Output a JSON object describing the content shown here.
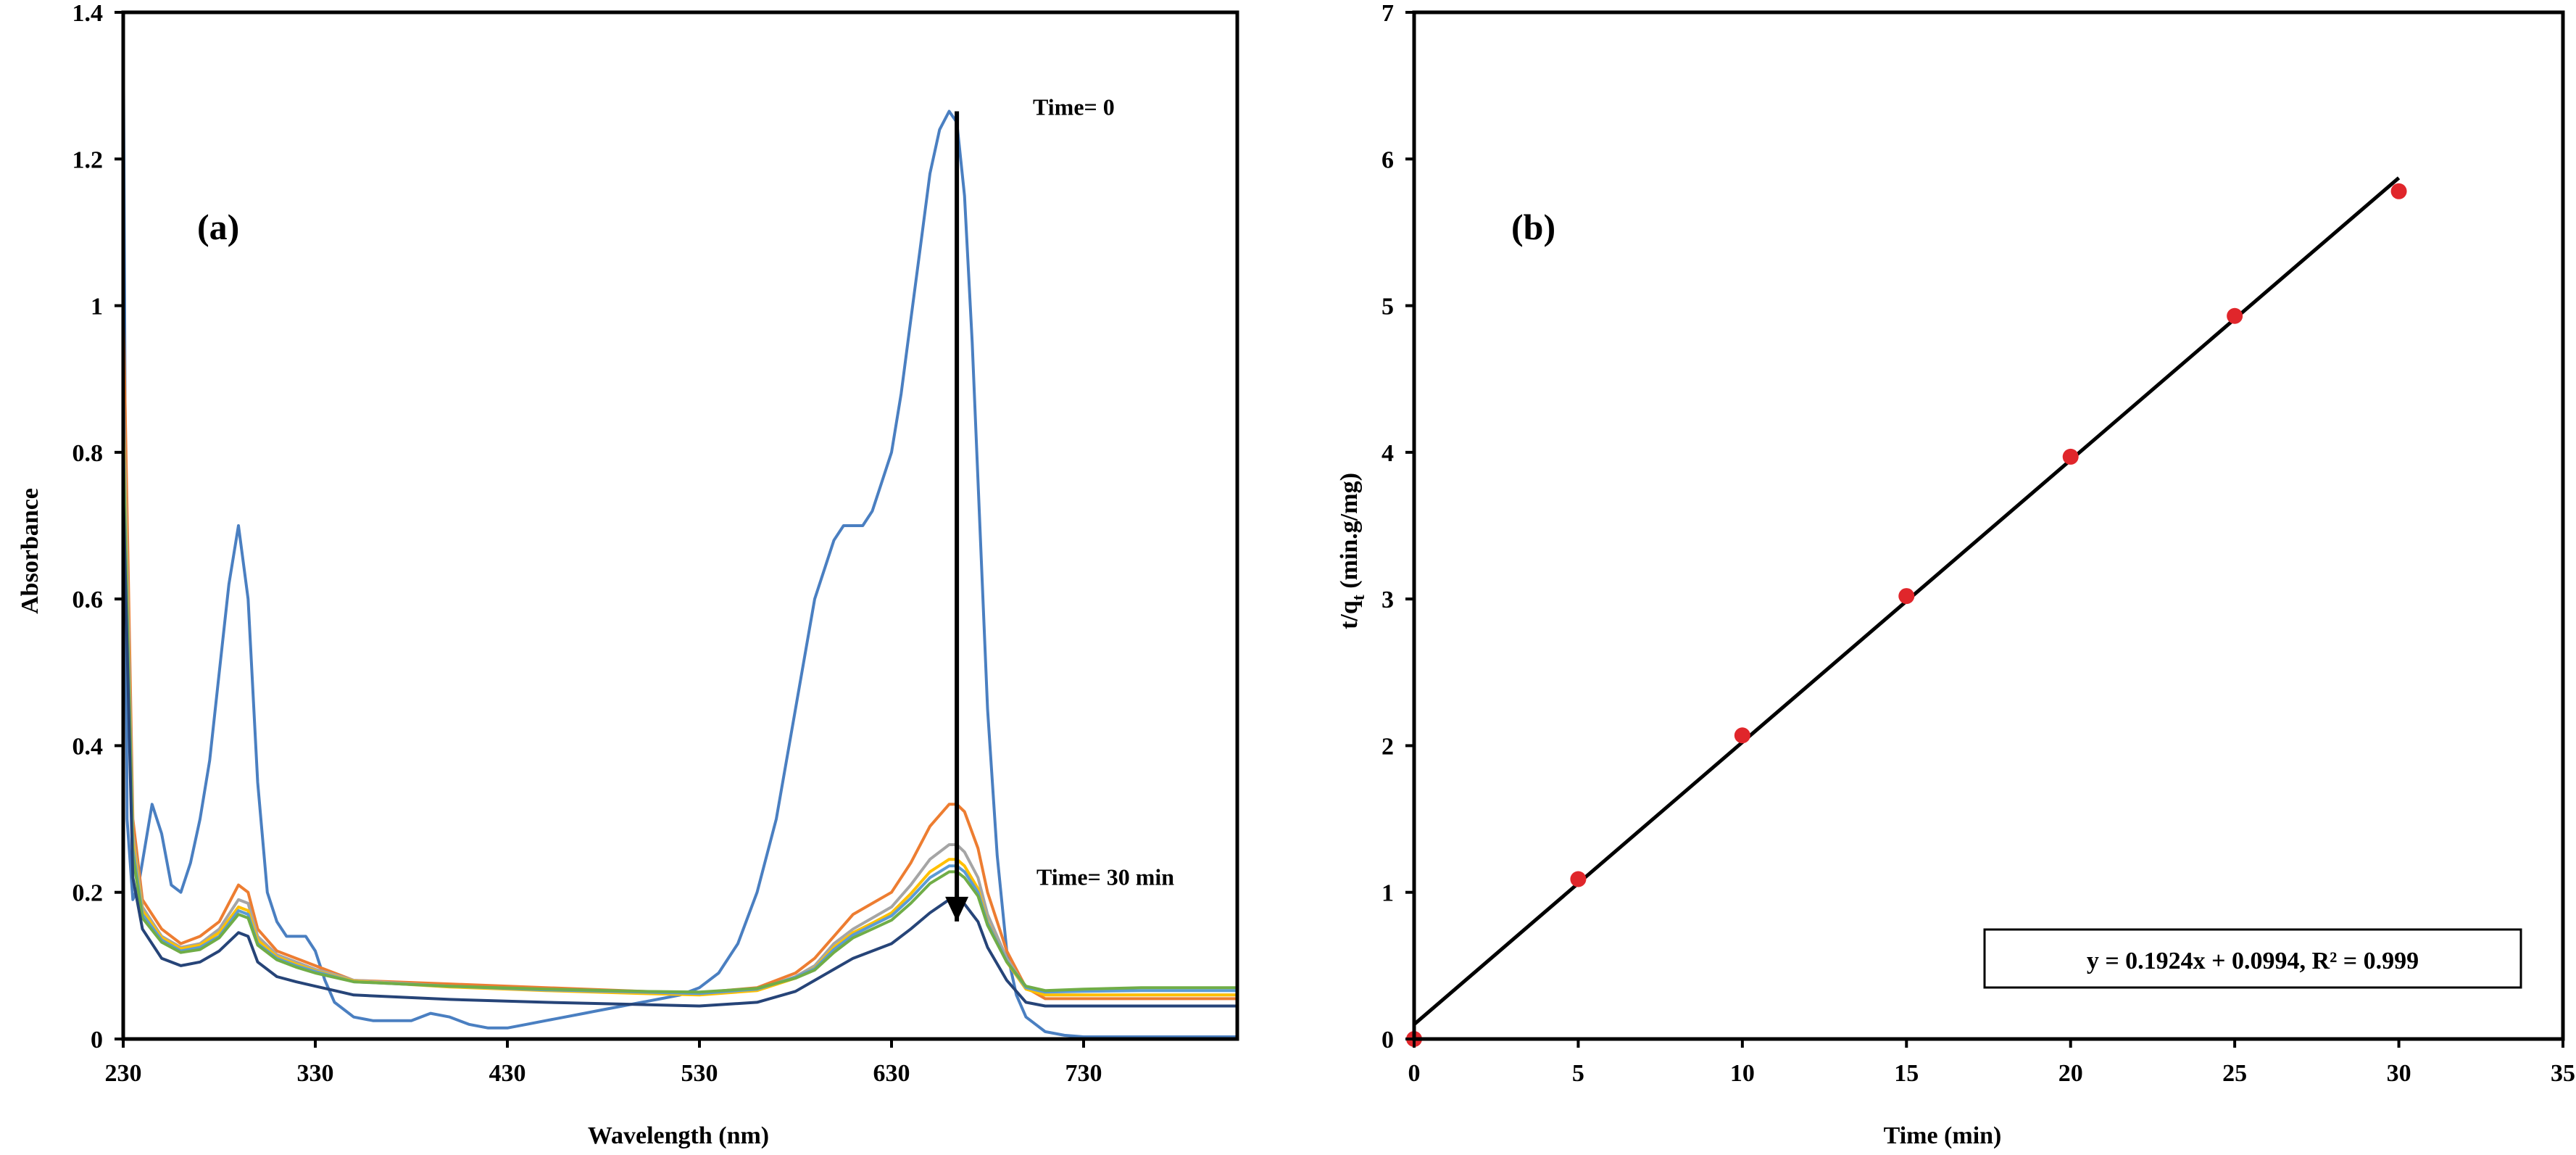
{
  "chart_data": [
    {
      "type": "line",
      "panel_label": "(a)",
      "xlabel": "Wavelength (nm)",
      "ylabel": "Absorbance",
      "xlim": [
        230,
        810
      ],
      "ylim": [
        0,
        1.4
      ],
      "xticks": [
        230,
        330,
        430,
        530,
        630,
        730
      ],
      "yticks": [
        0,
        0.2,
        0.4,
        0.6,
        0.8,
        1,
        1.2,
        1.4
      ],
      "xtick_labels": [
        "230",
        "330",
        "430",
        "530",
        "630",
        "730"
      ],
      "ytick_labels": [
        "0",
        "0.2",
        "0.4",
        "0.6",
        "0.8",
        "1",
        "1.2",
        "1.4"
      ],
      "grid": false,
      "annotations": [
        {
          "text": "Time= 0",
          "x": 667,
          "y": 1.27
        },
        {
          "text": "Time= 30 min",
          "x": 670,
          "y": 0.22
        }
      ],
      "arrow": {
        "x": 664,
        "y_from": 1.265,
        "y_to": 0.19
      },
      "series": [
        {
          "color": "#4a7fc1",
          "x": [
            230,
            232,
            235,
            238,
            245,
            250,
            255,
            260,
            265,
            270,
            275,
            280,
            285,
            290,
            295,
            300,
            305,
            310,
            315,
            320,
            325,
            330,
            335,
            340,
            350,
            360,
            370,
            380,
            390,
            400,
            410,
            420,
            430,
            440,
            450,
            460,
            470,
            480,
            490,
            500,
            510,
            520,
            530,
            540,
            550,
            560,
            570,
            580,
            590,
            600,
            605,
            610,
            615,
            620,
            625,
            630,
            635,
            640,
            645,
            650,
            655,
            660,
            664,
            668,
            672,
            676,
            680,
            685,
            690,
            695,
            700,
            705,
            710,
            720,
            730,
            740,
            750,
            760,
            780,
            800,
            810
          ],
          "y": [
            1.4,
            0.3,
            0.19,
            0.21,
            0.32,
            0.28,
            0.21,
            0.2,
            0.24,
            0.3,
            0.38,
            0.5,
            0.62,
            0.7,
            0.6,
            0.35,
            0.2,
            0.16,
            0.14,
            0.14,
            0.14,
            0.12,
            0.08,
            0.05,
            0.03,
            0.025,
            0.025,
            0.025,
            0.035,
            0.03,
            0.02,
            0.015,
            0.015,
            0.02,
            0.025,
            0.03,
            0.035,
            0.04,
            0.045,
            0.05,
            0.055,
            0.06,
            0.07,
            0.09,
            0.13,
            0.2,
            0.3,
            0.45,
            0.6,
            0.68,
            0.7,
            0.7,
            0.7,
            0.72,
            0.76,
            0.8,
            0.88,
            0.98,
            1.08,
            1.18,
            1.24,
            1.265,
            1.25,
            1.15,
            0.95,
            0.7,
            0.45,
            0.25,
            0.12,
            0.06,
            0.03,
            0.02,
            0.01,
            0.005,
            0.003,
            0.003,
            0.003,
            0.003,
            0.003,
            0.003,
            0.003
          ]
        },
        {
          "color": "#ed7d31",
          "x": [
            230,
            235,
            240,
            250,
            260,
            270,
            280,
            290,
            295,
            300,
            310,
            320,
            330,
            340,
            350,
            400,
            450,
            500,
            530,
            560,
            580,
            590,
            600,
            610,
            620,
            630,
            640,
            650,
            660,
            664,
            668,
            675,
            680,
            690,
            700,
            710,
            730,
            760,
            810
          ],
          "y": [
            1.0,
            0.3,
            0.19,
            0.15,
            0.13,
            0.14,
            0.16,
            0.21,
            0.2,
            0.15,
            0.12,
            0.11,
            0.1,
            0.09,
            0.08,
            0.075,
            0.07,
            0.065,
            0.063,
            0.07,
            0.09,
            0.11,
            0.14,
            0.17,
            0.185,
            0.2,
            0.24,
            0.29,
            0.32,
            0.32,
            0.31,
            0.26,
            0.2,
            0.12,
            0.07,
            0.055,
            0.055,
            0.055,
            0.055
          ]
        },
        {
          "color": "#a5a5a5",
          "x": [
            230,
            235,
            240,
            250,
            260,
            270,
            280,
            290,
            295,
            300,
            310,
            320,
            330,
            340,
            350,
            400,
            450,
            500,
            530,
            560,
            580,
            590,
            600,
            610,
            620,
            630,
            640,
            650,
            660,
            664,
            668,
            675,
            680,
            690,
            700,
            710,
            730,
            760,
            810
          ],
          "y": [
            0.9,
            0.28,
            0.18,
            0.14,
            0.125,
            0.13,
            0.15,
            0.19,
            0.185,
            0.14,
            0.115,
            0.105,
            0.095,
            0.088,
            0.08,
            0.072,
            0.067,
            0.063,
            0.061,
            0.067,
            0.085,
            0.1,
            0.13,
            0.15,
            0.165,
            0.18,
            0.21,
            0.245,
            0.265,
            0.265,
            0.255,
            0.22,
            0.17,
            0.11,
            0.07,
            0.06,
            0.06,
            0.06,
            0.06
          ]
        },
        {
          "color": "#ffc000",
          "x": [
            230,
            235,
            240,
            250,
            260,
            270,
            280,
            290,
            295,
            300,
            310,
            320,
            330,
            340,
            350,
            400,
            450,
            500,
            530,
            560,
            580,
            590,
            600,
            610,
            620,
            630,
            640,
            650,
            660,
            664,
            668,
            675,
            680,
            690,
            700,
            710,
            730,
            760,
            810
          ],
          "y": [
            0.85,
            0.27,
            0.175,
            0.138,
            0.123,
            0.128,
            0.145,
            0.18,
            0.175,
            0.135,
            0.112,
            0.102,
            0.093,
            0.086,
            0.079,
            0.071,
            0.066,
            0.062,
            0.06,
            0.066,
            0.083,
            0.097,
            0.125,
            0.145,
            0.158,
            0.172,
            0.198,
            0.228,
            0.245,
            0.245,
            0.236,
            0.205,
            0.16,
            0.105,
            0.068,
            0.06,
            0.06,
            0.06,
            0.06
          ]
        },
        {
          "color": "#5b9bd5",
          "x": [
            230,
            235,
            240,
            250,
            260,
            270,
            280,
            290,
            295,
            300,
            310,
            320,
            330,
            340,
            350,
            400,
            450,
            500,
            530,
            560,
            580,
            590,
            600,
            610,
            620,
            630,
            640,
            650,
            660,
            664,
            668,
            675,
            680,
            690,
            700,
            710,
            730,
            760,
            810
          ],
          "y": [
            0.82,
            0.26,
            0.17,
            0.135,
            0.12,
            0.125,
            0.14,
            0.175,
            0.17,
            0.13,
            0.11,
            0.1,
            0.092,
            0.085,
            0.078,
            0.072,
            0.067,
            0.064,
            0.062,
            0.068,
            0.084,
            0.096,
            0.122,
            0.142,
            0.155,
            0.168,
            0.192,
            0.22,
            0.236,
            0.236,
            0.228,
            0.2,
            0.158,
            0.106,
            0.07,
            0.064,
            0.065,
            0.066,
            0.066
          ]
        },
        {
          "color": "#70ad47",
          "x": [
            230,
            235,
            240,
            250,
            260,
            270,
            280,
            290,
            295,
            300,
            310,
            320,
            330,
            340,
            350,
            400,
            450,
            500,
            530,
            560,
            580,
            590,
            600,
            610,
            620,
            630,
            640,
            650,
            660,
            664,
            668,
            675,
            680,
            690,
            700,
            710,
            730,
            760,
            810
          ],
          "y": [
            0.8,
            0.25,
            0.165,
            0.132,
            0.118,
            0.122,
            0.138,
            0.17,
            0.165,
            0.128,
            0.108,
            0.098,
            0.09,
            0.084,
            0.078,
            0.072,
            0.068,
            0.065,
            0.064,
            0.069,
            0.083,
            0.094,
            0.118,
            0.138,
            0.15,
            0.162,
            0.185,
            0.212,
            0.228,
            0.228,
            0.22,
            0.195,
            0.155,
            0.105,
            0.072,
            0.066,
            0.068,
            0.07,
            0.07
          ]
        },
        {
          "color": "#264478",
          "x": [
            230,
            235,
            240,
            250,
            260,
            270,
            280,
            290,
            295,
            300,
            310,
            320,
            330,
            340,
            350,
            400,
            450,
            500,
            530,
            560,
            580,
            590,
            600,
            610,
            620,
            630,
            640,
            650,
            660,
            664,
            668,
            675,
            680,
            690,
            700,
            710,
            730,
            760,
            810
          ],
          "y": [
            0.75,
            0.22,
            0.15,
            0.11,
            0.1,
            0.105,
            0.12,
            0.145,
            0.14,
            0.105,
            0.085,
            0.078,
            0.072,
            0.066,
            0.06,
            0.054,
            0.05,
            0.047,
            0.045,
            0.05,
            0.065,
            0.08,
            0.095,
            0.11,
            0.12,
            0.13,
            0.15,
            0.172,
            0.19,
            0.19,
            0.184,
            0.16,
            0.125,
            0.08,
            0.05,
            0.045,
            0.045,
            0.045,
            0.045
          ]
        }
      ]
    },
    {
      "type": "scatter",
      "panel_label": "(b)",
      "xlabel": "Time (min)",
      "ylabel_main": "t/q",
      "ylabel_sub": "t",
      "ylabel_units": " (min.g/mg)",
      "xlim": [
        0,
        35
      ],
      "ylim": [
        0,
        7
      ],
      "xticks": [
        0,
        5,
        10,
        15,
        20,
        25,
        30,
        35
      ],
      "yticks": [
        0,
        1,
        2,
        3,
        4,
        5,
        6,
        7
      ],
      "xtick_labels": [
        "0",
        "5",
        "10",
        "15",
        "20",
        "25",
        "30",
        "35"
      ],
      "ytick_labels": [
        "0",
        "1",
        "2",
        "3",
        "4",
        "5",
        "6",
        "7"
      ],
      "grid": false,
      "point_color": "#e0262b",
      "line_color": "#000000",
      "x": [
        0,
        5,
        10,
        15,
        20,
        25,
        30
      ],
      "y": [
        0,
        1.09,
        2.07,
        3.02,
        3.97,
        4.93,
        5.78
      ],
      "fit": {
        "slope": 0.1924,
        "intercept": 0.0994,
        "x_range": [
          0,
          30
        ]
      },
      "equation": "y = 0.1924x + 0.0994, R² = 0.999"
    }
  ]
}
